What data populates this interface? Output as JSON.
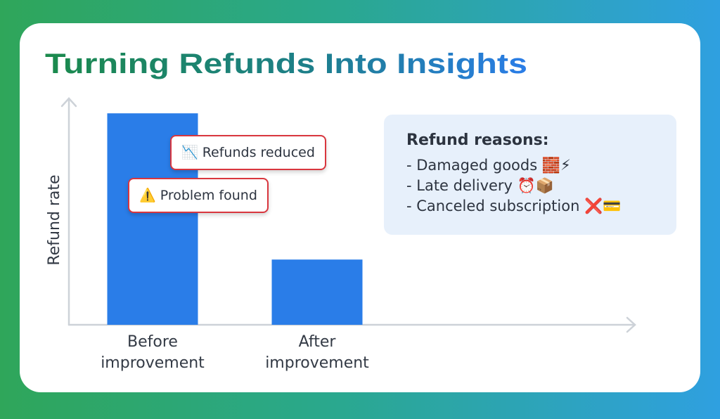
{
  "chart_data": {
    "type": "bar",
    "title": "Turning Refunds Into Insights",
    "y_label": "Refund rate",
    "categories": [
      "Before improvement",
      "After improvement"
    ],
    "values": [
      94,
      29
    ],
    "color": "#2a7de8",
    "ylim": [
      0,
      100
    ],
    "annotations": [
      "📉 Refunds reduced",
      "⚠️ Problem found"
    ],
    "reasons": {
      "title": "Refund reasons:",
      "items": [
        "- Damaged goods 🧱⚡",
        "- Late delivery ⏰📦",
        "- Canceled subscription ❌💳"
      ]
    }
  }
}
